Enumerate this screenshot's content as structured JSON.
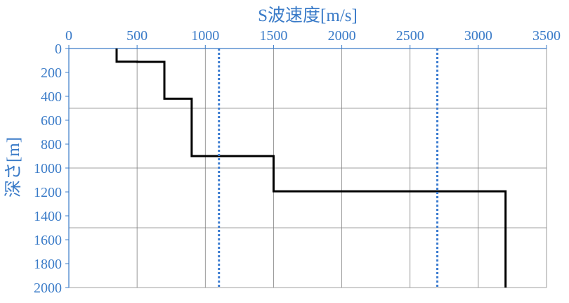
{
  "chart_data": {
    "type": "line",
    "title": "",
    "xlabel": "S波速度[m/s]",
    "ylabel": "深さ[m]",
    "x_axis_position": "top",
    "y_axis_inverted": true,
    "xlim": [
      0,
      3500
    ],
    "ylim": [
      0,
      2000
    ],
    "x_ticks": [
      0,
      500,
      1000,
      1500,
      2000,
      2500,
      3000,
      3500
    ],
    "y_ticks": [
      0,
      200,
      400,
      600,
      800,
      1000,
      1200,
      1400,
      1600,
      1800,
      2000
    ],
    "x_gridlines": [
      500,
      1000,
      1500,
      2000,
      2500,
      3000,
      3500
    ],
    "y_gridlines": [
      500,
      1000,
      1500
    ],
    "grid": true,
    "legend": "none",
    "colors": {
      "axis_text": "#3a7bc8",
      "profile": "#000000",
      "reference_lines": "#3a7bd0",
      "grid": "#808080",
      "axes": "#3a7bc8"
    },
    "series": [
      {
        "style": "solid",
        "points": [
          [
            350,
            0
          ],
          [
            350,
            110
          ],
          [
            500,
            110
          ],
          [
            500,
            112
          ],
          [
            700,
            112
          ],
          [
            700,
            420
          ],
          [
            900,
            420
          ],
          [
            900,
            900
          ],
          [
            1500,
            900
          ],
          [
            1500,
            1195
          ],
          [
            3200,
            1195
          ],
          [
            3200,
            2000
          ]
        ]
      },
      {
        "style": "dotted",
        "points": [
          [
            1100,
            0
          ],
          [
            1100,
            2000
          ]
        ]
      },
      {
        "style": "dotted",
        "points": [
          [
            2700,
            0
          ],
          [
            2700,
            2000
          ]
        ]
      }
    ]
  }
}
